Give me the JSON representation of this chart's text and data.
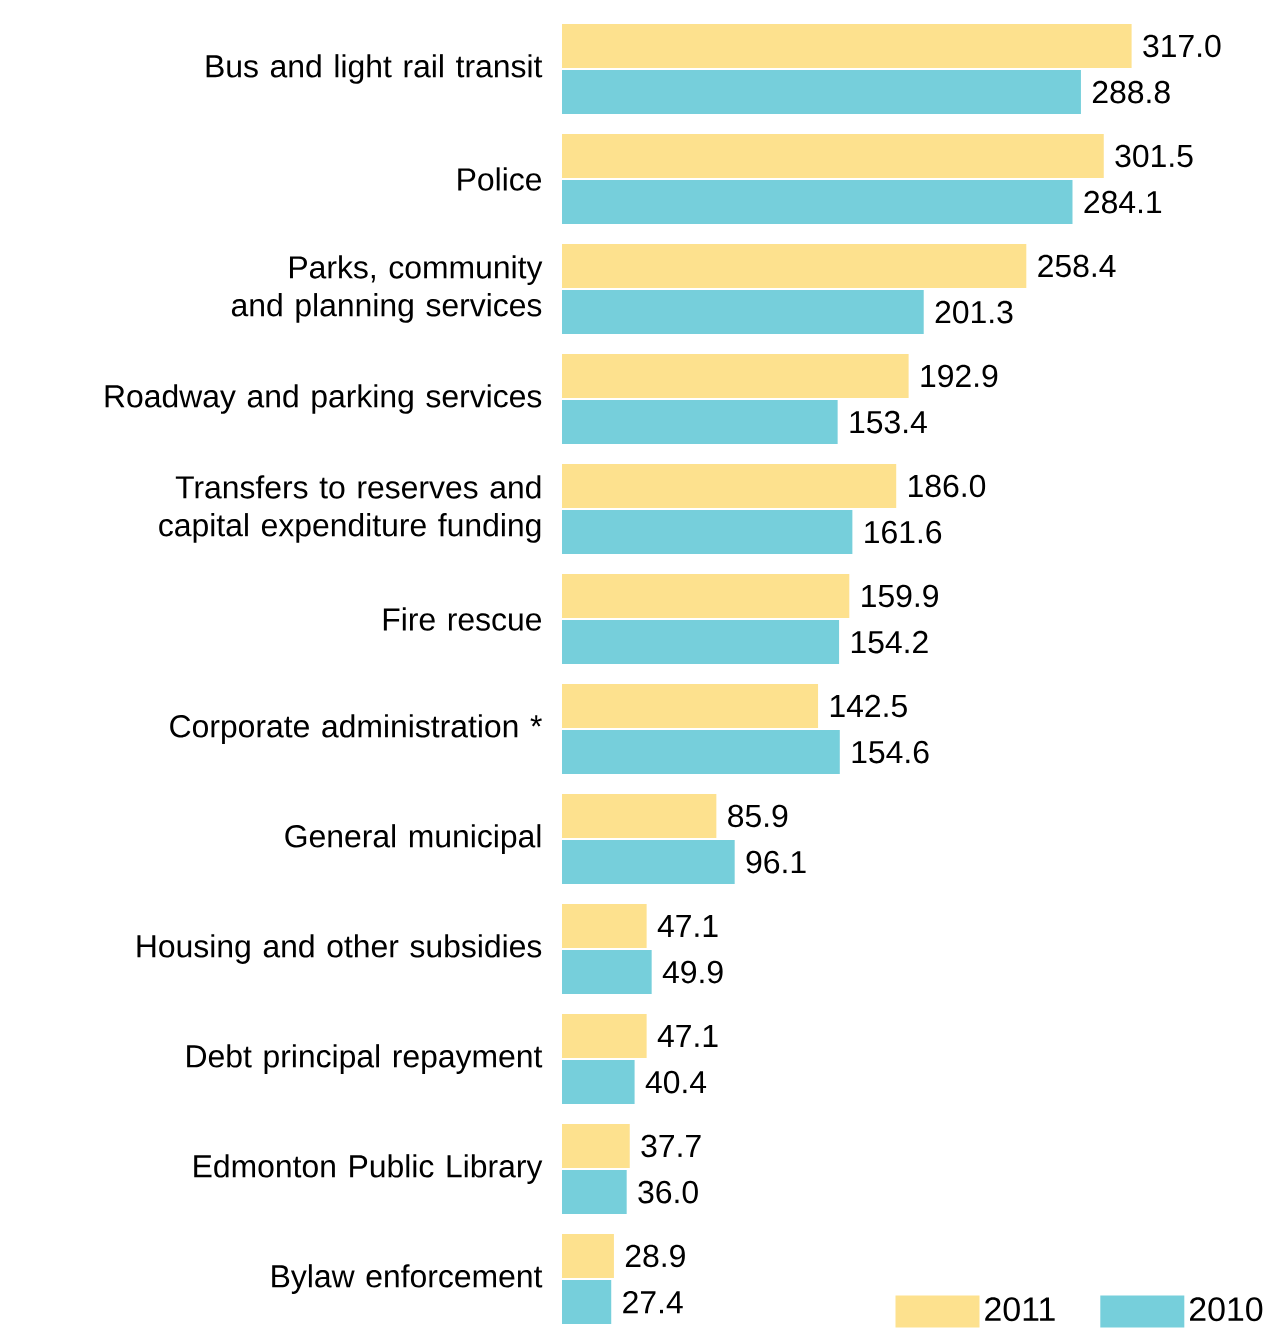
{
  "chart_data": {
    "type": "bar",
    "orientation": "horizontal",
    "legend": "bottom right",
    "categories": [
      "Bus and light rail transit",
      "Police",
      "Parks, community and planning services",
      "Roadway and parking services",
      "Transfers to reserves and capital expenditure funding",
      "Fire rescue",
      "Corporate administration *",
      "General municipal",
      "Housing and other subsidies",
      "Debt principal repayment",
      "Edmonton Public Library",
      "Bylaw enforcement"
    ],
    "series": [
      {
        "name": "2011",
        "color": "#fde18e",
        "values": [
          317.0,
          301.5,
          258.4,
          192.9,
          186.0,
          159.9,
          142.5,
          85.9,
          47.1,
          47.1,
          37.7,
          28.9
        ],
        "value_labels": [
          "317.0",
          "301.5",
          "258.4",
          "192.9",
          "186.0",
          "159.9",
          "142.5",
          "85.9",
          "47.1",
          "47.1",
          "37.7",
          "28.9"
        ]
      },
      {
        "name": "2010",
        "color": "#76cfdb",
        "values": [
          288.8,
          284.1,
          201.3,
          153.4,
          161.6,
          154.2,
          154.6,
          96.1,
          49.9,
          40.4,
          36.0,
          27.4
        ],
        "value_labels": [
          "288.8",
          "284.1",
          "201.3",
          "153.4",
          "161.6",
          "154.2",
          "154.6",
          "96.1",
          "49.9",
          "40.4",
          "36.0",
          "27.4"
        ]
      }
    ]
  }
}
